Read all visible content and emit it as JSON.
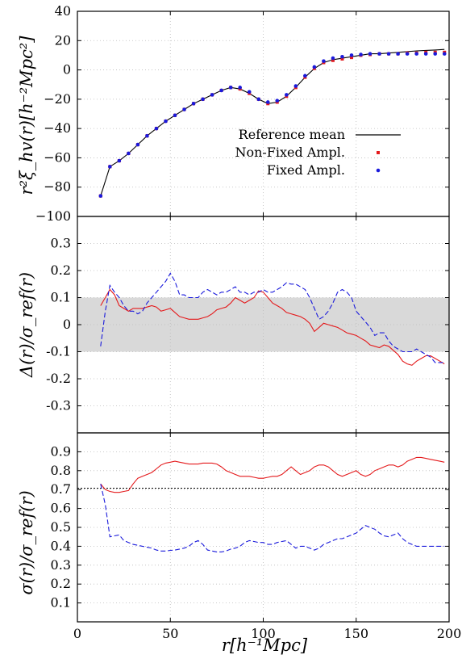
{
  "chart_data": [
    {
      "type": "line",
      "panel": "top",
      "ylabel": "r²ξ_hv(r)[h⁻²Mpc²]",
      "xlim": [
        0,
        200
      ],
      "ylim": [
        -100,
        40
      ],
      "yticks": [
        "40",
        "20",
        "0",
        "−20",
        "−40",
        "−60",
        "−80",
        "−100"
      ],
      "ytick_values": [
        40,
        20,
        0,
        -20,
        -40,
        -60,
        -80,
        -100
      ],
      "grid": true,
      "legend": "right",
      "series": [
        {
          "name": "Reference mean",
          "style": "solid-black",
          "x": [
            12.5,
            17.5,
            22.5,
            27.5,
            32.5,
            37.5,
            42.5,
            47.5,
            52.5,
            57.5,
            62.5,
            67.5,
            72.5,
            77.5,
            82.5,
            87.5,
            92.5,
            97.5,
            102.5,
            107.5,
            112.5,
            117.5,
            122.5,
            127.5,
            132.5,
            137.5,
            142.5,
            147.5,
            152.5,
            157.5,
            162.5,
            167.5,
            172.5,
            177.5,
            182.5,
            187.5,
            192.5,
            197.5
          ],
          "y": [
            -86,
            -66,
            -62,
            -57,
            -51,
            -45,
            -40,
            -35,
            -31,
            -27,
            -23,
            -20,
            -17,
            -14,
            -12,
            -13,
            -16,
            -20,
            -23,
            -22,
            -18,
            -12,
            -5,
            1,
            5,
            7,
            8,
            9,
            10,
            11,
            11,
            11.5,
            12,
            12.5,
            13,
            13.3,
            13.6,
            14
          ]
        },
        {
          "name": "Non-Fixed Ampl.",
          "style": "red-squares",
          "color": "#e41a1c",
          "x": [
            12.5,
            17.5,
            22.5,
            27.5,
            32.5,
            37.5,
            42.5,
            47.5,
            52.5,
            57.5,
            62.5,
            67.5,
            72.5,
            77.5,
            82.5,
            87.5,
            92.5,
            97.5,
            102.5,
            107.5,
            112.5,
            117.5,
            122.5,
            127.5,
            132.5,
            137.5,
            142.5,
            147.5,
            152.5,
            157.5,
            162.5,
            167.5,
            172.5,
            177.5,
            182.5,
            187.5,
            192.5,
            197.5
          ],
          "y": [
            -86,
            -66,
            -62,
            -57,
            -51,
            -45,
            -40,
            -35,
            -31,
            -27,
            -23,
            -20,
            -17,
            -14,
            -12,
            -13,
            -16,
            -20,
            -23,
            -22,
            -18,
            -12,
            -5,
            1,
            5,
            6.5,
            7.5,
            8.5,
            10,
            10.5,
            11,
            11,
            11,
            11.5,
            11.5,
            12,
            12,
            12
          ]
        },
        {
          "name": "Fixed Ampl.",
          "style": "blue-dots",
          "color": "#1a1adb",
          "x": [
            12.5,
            17.5,
            22.5,
            27.5,
            32.5,
            37.5,
            42.5,
            47.5,
            52.5,
            57.5,
            62.5,
            67.5,
            72.5,
            77.5,
            82.5,
            87.5,
            92.5,
            97.5,
            102.5,
            107.5,
            112.5,
            117.5,
            122.5,
            127.5,
            132.5,
            137.5,
            142.5,
            147.5,
            152.5,
            157.5,
            162.5,
            167.5,
            172.5,
            177.5,
            182.5,
            187.5,
            192.5,
            197.5
          ],
          "y": [
            -86,
            -66,
            -62,
            -57,
            -51,
            -45,
            -40,
            -35,
            -31,
            -27,
            -23,
            -20,
            -17,
            -14,
            -12,
            -12,
            -15,
            -20,
            -22,
            -21,
            -17,
            -11,
            -4,
            2,
            6,
            8,
            9,
            10,
            10.5,
            11,
            11,
            11,
            11,
            11,
            11,
            11,
            11,
            11
          ]
        }
      ]
    },
    {
      "type": "line",
      "panel": "middle",
      "ylabel": "Δ(r)/σ_ref(r)",
      "xlim": [
        0,
        200
      ],
      "ylim": [
        -0.4,
        0.4
      ],
      "yticks": [
        "0.3",
        "0.2",
        "0.1",
        "0",
        "-0.1",
        "-0.2",
        "-0.3"
      ],
      "ytick_values": [
        0.3,
        0.2,
        0.1,
        0,
        -0.1,
        -0.2,
        -0.3
      ],
      "band": [
        -0.1,
        0.1
      ],
      "grid": true,
      "series": [
        {
          "style": "solid-red",
          "color": "#e41a1c",
          "x": [
            12.5,
            15,
            17.5,
            20,
            22.5,
            25,
            27.5,
            30,
            32.5,
            35,
            37.5,
            40,
            42.5,
            45,
            47.5,
            50,
            52.5,
            55,
            57.5,
            60,
            62.5,
            65,
            67.5,
            70,
            72.5,
            75,
            77.5,
            80,
            82.5,
            85,
            87.5,
            90,
            92.5,
            95,
            97.5,
            100,
            102.5,
            105,
            107.5,
            110,
            112.5,
            115,
            117.5,
            120,
            122.5,
            125,
            127.5,
            130,
            132.5,
            135,
            137.5,
            140,
            142.5,
            145,
            147.5,
            150,
            152.5,
            155,
            157.5,
            160,
            162.5,
            165,
            167.5,
            170,
            172.5,
            175,
            177.5,
            180,
            182.5,
            185,
            187.5,
            190,
            192.5,
            195,
            197.5
          ],
          "y": [
            0.07,
            0.1,
            0.13,
            0.11,
            0.07,
            0.06,
            0.05,
            0.06,
            0.06,
            0.06,
            0.065,
            0.07,
            0.065,
            0.05,
            0.055,
            0.06,
            0.045,
            0.03,
            0.025,
            0.02,
            0.02,
            0.02,
            0.025,
            0.03,
            0.04,
            0.055,
            0.06,
            0.065,
            0.08,
            0.1,
            0.09,
            0.08,
            0.09,
            0.1,
            0.125,
            0.12,
            0.1,
            0.08,
            0.07,
            0.06,
            0.045,
            0.04,
            0.035,
            0.03,
            0.02,
            0.005,
            -0.025,
            -0.01,
            0.005,
            0,
            -0.005,
            -0.01,
            -0.02,
            -0.03,
            -0.035,
            -0.04,
            -0.05,
            -0.06,
            -0.075,
            -0.08,
            -0.085,
            -0.075,
            -0.08,
            -0.095,
            -0.11,
            -0.135,
            -0.145,
            -0.15,
            -0.135,
            -0.125,
            -0.115,
            -0.115,
            -0.125,
            -0.135,
            -0.145
          ]
        },
        {
          "style": "dashed-blue",
          "color": "#1a1adb",
          "x": [
            12.5,
            15,
            17.5,
            20,
            22.5,
            25,
            27.5,
            30,
            32.5,
            35,
            37.5,
            40,
            42.5,
            45,
            47.5,
            50,
            52.5,
            55,
            57.5,
            60,
            62.5,
            65,
            67.5,
            70,
            72.5,
            75,
            77.5,
            80,
            82.5,
            85,
            87.5,
            90,
            92.5,
            95,
            97.5,
            100,
            102.5,
            105,
            107.5,
            110,
            112.5,
            115,
            117.5,
            120,
            122.5,
            125,
            127.5,
            130,
            132.5,
            135,
            137.5,
            140,
            142.5,
            145,
            147.5,
            150,
            152.5,
            155,
            157.5,
            160,
            162.5,
            165,
            167.5,
            170,
            172.5,
            175,
            177.5,
            180,
            182.5,
            185,
            187.5,
            190,
            192.5,
            195,
            197.5
          ],
          "y": [
            -0.08,
            0.05,
            0.145,
            0.12,
            0.1,
            0.07,
            0.05,
            0.05,
            0.04,
            0.05,
            0.08,
            0.1,
            0.12,
            0.14,
            0.16,
            0.19,
            0.16,
            0.11,
            0.11,
            0.1,
            0.1,
            0.1,
            0.12,
            0.13,
            0.12,
            0.11,
            0.12,
            0.12,
            0.13,
            0.14,
            0.12,
            0.12,
            0.11,
            0.12,
            0.12,
            0.13,
            0.12,
            0.12,
            0.13,
            0.14,
            0.155,
            0.15,
            0.15,
            0.14,
            0.13,
            0.1,
            0.06,
            0.02,
            0.03,
            0.05,
            0.08,
            0.12,
            0.13,
            0.12,
            0.1,
            0.05,
            0.03,
            0.01,
            -0.01,
            -0.04,
            -0.03,
            -0.03,
            -0.06,
            -0.08,
            -0.09,
            -0.1,
            -0.1,
            -0.1,
            -0.09,
            -0.1,
            -0.11,
            -0.12,
            -0.14,
            -0.14,
            -0.14
          ]
        }
      ]
    },
    {
      "type": "line",
      "panel": "bottom",
      "ylabel": "σ(r)/σ_ref(r)",
      "xlabel": "r[h⁻¹Mpc]",
      "xlim": [
        0,
        200
      ],
      "xticks": [
        "0",
        "50",
        "100",
        "150",
        "200"
      ],
      "xtick_values": [
        0,
        50,
        100,
        150,
        200
      ],
      "ylim": [
        0,
        1
      ],
      "yticks": [
        "0.9",
        "0.8",
        "0.7",
        "0.6",
        "0.5",
        "0.4",
        "0.3",
        "0.2",
        "0.1"
      ],
      "ytick_values": [
        0.9,
        0.8,
        0.7,
        0.6,
        0.5,
        0.4,
        0.3,
        0.2,
        0.1
      ],
      "reference_line": 0.707,
      "grid": true,
      "series": [
        {
          "style": "solid-red",
          "color": "#e41a1c",
          "x": [
            12.5,
            15,
            17.5,
            20,
            22.5,
            25,
            27.5,
            30,
            32.5,
            35,
            37.5,
            40,
            42.5,
            45,
            47.5,
            50,
            52.5,
            55,
            57.5,
            60,
            62.5,
            65,
            67.5,
            70,
            72.5,
            75,
            77.5,
            80,
            82.5,
            85,
            87.5,
            90,
            92.5,
            95,
            97.5,
            100,
            102.5,
            105,
            107.5,
            110,
            112.5,
            115,
            117.5,
            120,
            122.5,
            125,
            127.5,
            130,
            132.5,
            135,
            137.5,
            140,
            142.5,
            145,
            147.5,
            150,
            152.5,
            155,
            157.5,
            160,
            162.5,
            165,
            167.5,
            170,
            172.5,
            175,
            177.5,
            180,
            182.5,
            185,
            187.5,
            190,
            192.5,
            195,
            197.5
          ],
          "y": [
            0.73,
            0.7,
            0.69,
            0.685,
            0.685,
            0.69,
            0.695,
            0.73,
            0.76,
            0.77,
            0.78,
            0.79,
            0.81,
            0.83,
            0.84,
            0.845,
            0.85,
            0.845,
            0.84,
            0.835,
            0.835,
            0.835,
            0.84,
            0.84,
            0.84,
            0.835,
            0.82,
            0.8,
            0.79,
            0.78,
            0.77,
            0.77,
            0.77,
            0.765,
            0.76,
            0.76,
            0.765,
            0.77,
            0.77,
            0.78,
            0.8,
            0.82,
            0.8,
            0.78,
            0.79,
            0.8,
            0.82,
            0.83,
            0.83,
            0.82,
            0.8,
            0.78,
            0.77,
            0.78,
            0.79,
            0.8,
            0.78,
            0.77,
            0.78,
            0.8,
            0.81,
            0.82,
            0.83,
            0.83,
            0.82,
            0.83,
            0.85,
            0.86,
            0.87,
            0.87,
            0.865,
            0.86,
            0.855,
            0.85,
            0.845
          ]
        },
        {
          "style": "dashed-blue",
          "color": "#1a1adb",
          "x": [
            12.5,
            15,
            17.5,
            20,
            22.5,
            25,
            27.5,
            30,
            32.5,
            35,
            37.5,
            40,
            42.5,
            45,
            47.5,
            50,
            52.5,
            55,
            57.5,
            60,
            62.5,
            65,
            67.5,
            70,
            72.5,
            75,
            77.5,
            80,
            82.5,
            85,
            87.5,
            90,
            92.5,
            95,
            97.5,
            100,
            102.5,
            105,
            107.5,
            110,
            112.5,
            115,
            117.5,
            120,
            122.5,
            125,
            127.5,
            130,
            132.5,
            135,
            137.5,
            140,
            142.5,
            145,
            147.5,
            150,
            152.5,
            155,
            157.5,
            160,
            162.5,
            165,
            167.5,
            170,
            172.5,
            175,
            177.5,
            180,
            182.5,
            185,
            187.5,
            190,
            192.5,
            195,
            197.5
          ],
          "y": [
            0.73,
            0.62,
            0.45,
            0.455,
            0.46,
            0.43,
            0.42,
            0.41,
            0.405,
            0.4,
            0.395,
            0.39,
            0.38,
            0.375,
            0.375,
            0.378,
            0.38,
            0.385,
            0.39,
            0.4,
            0.42,
            0.43,
            0.41,
            0.38,
            0.375,
            0.37,
            0.37,
            0.375,
            0.385,
            0.39,
            0.4,
            0.42,
            0.43,
            0.425,
            0.42,
            0.42,
            0.41,
            0.41,
            0.42,
            0.425,
            0.43,
            0.41,
            0.39,
            0.4,
            0.4,
            0.39,
            0.38,
            0.39,
            0.41,
            0.42,
            0.43,
            0.44,
            0.44,
            0.45,
            0.46,
            0.47,
            0.49,
            0.51,
            0.5,
            0.49,
            0.47,
            0.455,
            0.45,
            0.46,
            0.47,
            0.44,
            0.42,
            0.41,
            0.4,
            0.4,
            0.4,
            0.4,
            0.4,
            0.4,
            0.4
          ]
        }
      ]
    }
  ],
  "legend": {
    "entries": [
      "Reference mean",
      "Non-Fixed Ampl.",
      "Fixed Ampl."
    ]
  }
}
